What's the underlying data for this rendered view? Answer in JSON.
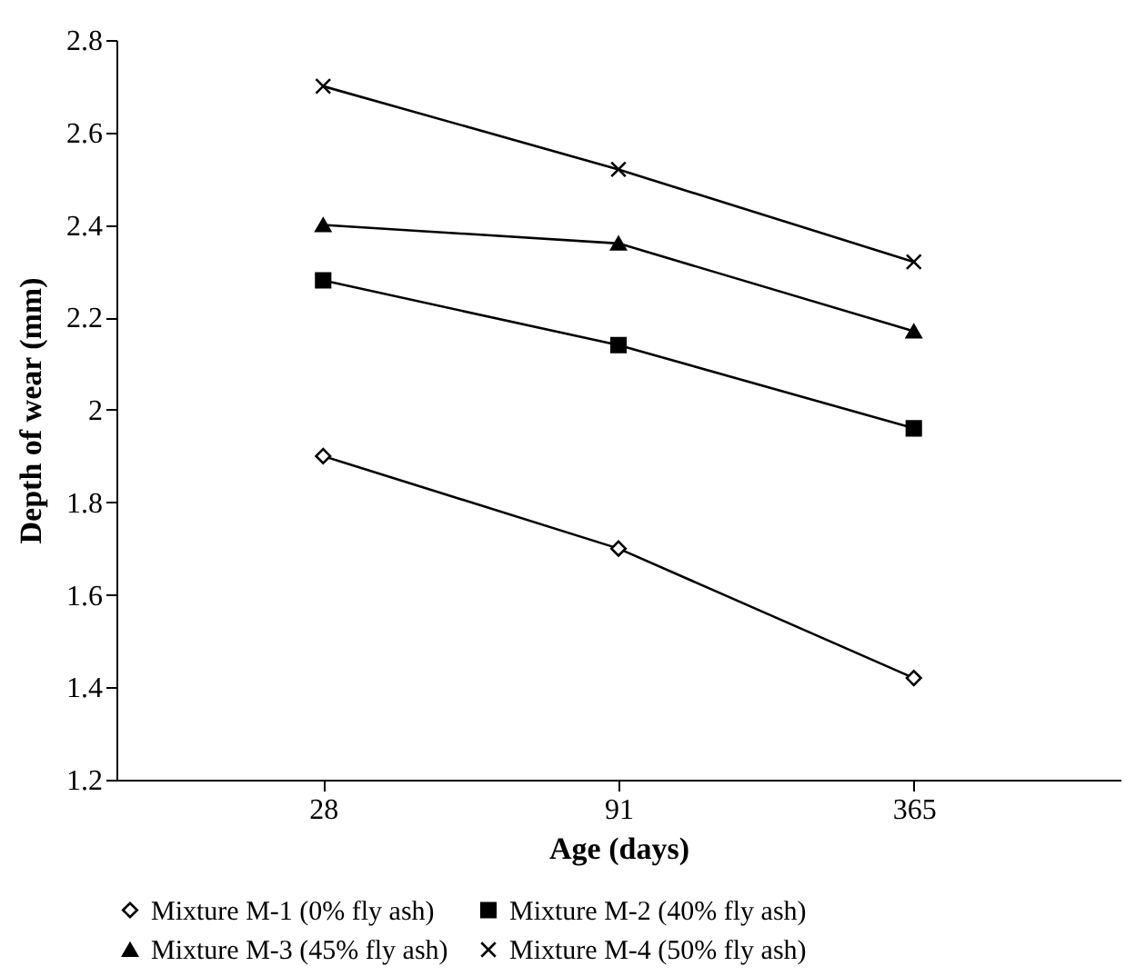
{
  "chart_data": {
    "type": "line",
    "xlabel": "Age (days)",
    "ylabel": "Depth of wear (mm)",
    "categories": [
      "28",
      "91",
      "365"
    ],
    "ylim": [
      1.2,
      2.8
    ],
    "yticks": [
      1.2,
      1.4,
      1.6,
      1.8,
      {
        "value": 2,
        "label": "2"
      },
      2.2,
      2.4,
      2.6,
      2.8
    ],
    "grid": false,
    "legend": "bottom",
    "line_style": "solid",
    "series": [
      {
        "name": "Mixture M-1 (0% fly ash)",
        "color": "#000000",
        "marker": "diamond",
        "values": [
          1.9,
          1.7,
          1.42
        ]
      },
      {
        "name": "Mixture M-2 (40% fly ash)",
        "color": "#000000",
        "marker": "square",
        "values": [
          2.28,
          2.14,
          1.96
        ]
      },
      {
        "name": "Mixture M-3 (45% fly ash)",
        "color": "#000000",
        "marker": "triangle",
        "values": [
          2.4,
          2.36,
          2.17
        ]
      },
      {
        "name": "Mixture M-4 (50% fly ash)",
        "color": "#000000",
        "marker": "cross",
        "values": [
          2.7,
          2.52,
          2.32
        ]
      }
    ]
  }
}
